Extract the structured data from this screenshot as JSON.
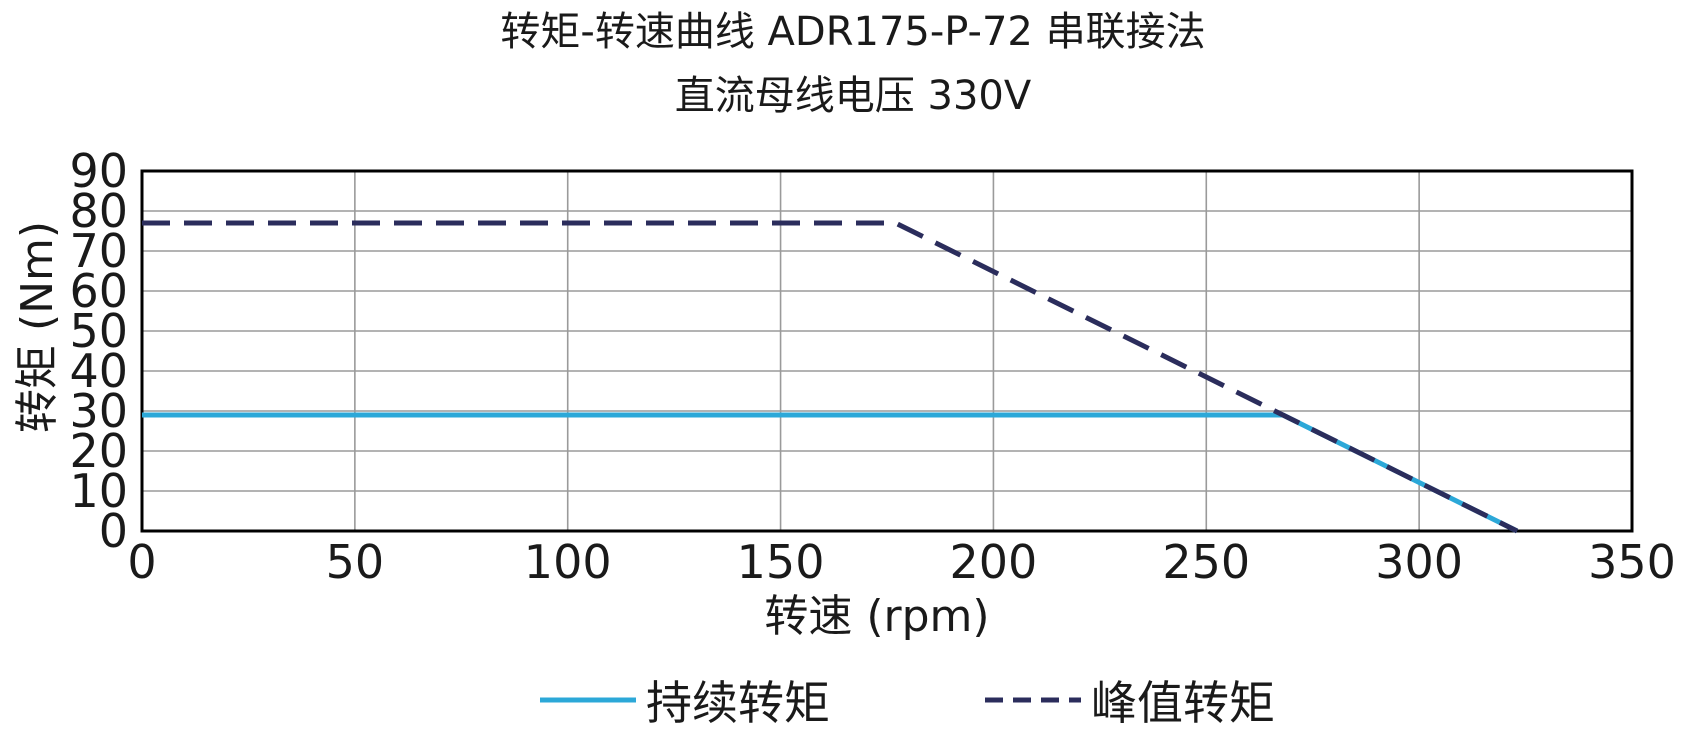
{
  "chart_data": {
    "type": "line",
    "title": "转矩-转速曲线 ADR175-P-72 串联接法",
    "subtitle": "直流母线电压 330V",
    "xlabel": "转速 (rpm)",
    "ylabel": "转矩 (Nm)",
    "xlim": [
      0,
      350
    ],
    "ylim": [
      0,
      90
    ],
    "xticks": [
      0,
      50,
      100,
      150,
      200,
      250,
      300,
      350
    ],
    "yticks": [
      0,
      10,
      20,
      30,
      40,
      50,
      60,
      70,
      80,
      90
    ],
    "grid": true,
    "legend_position": "bottom",
    "series": [
      {
        "name": "持续转矩",
        "color": "#2ca8d8",
        "style": "solid",
        "x": [
          0,
          268,
          323
        ],
        "y": [
          29,
          29,
          0
        ]
      },
      {
        "name": "峰值转矩",
        "color": "#2b2d5c",
        "style": "dashed",
        "x": [
          0,
          177,
          323
        ],
        "y": [
          77,
          77,
          0
        ]
      }
    ]
  }
}
